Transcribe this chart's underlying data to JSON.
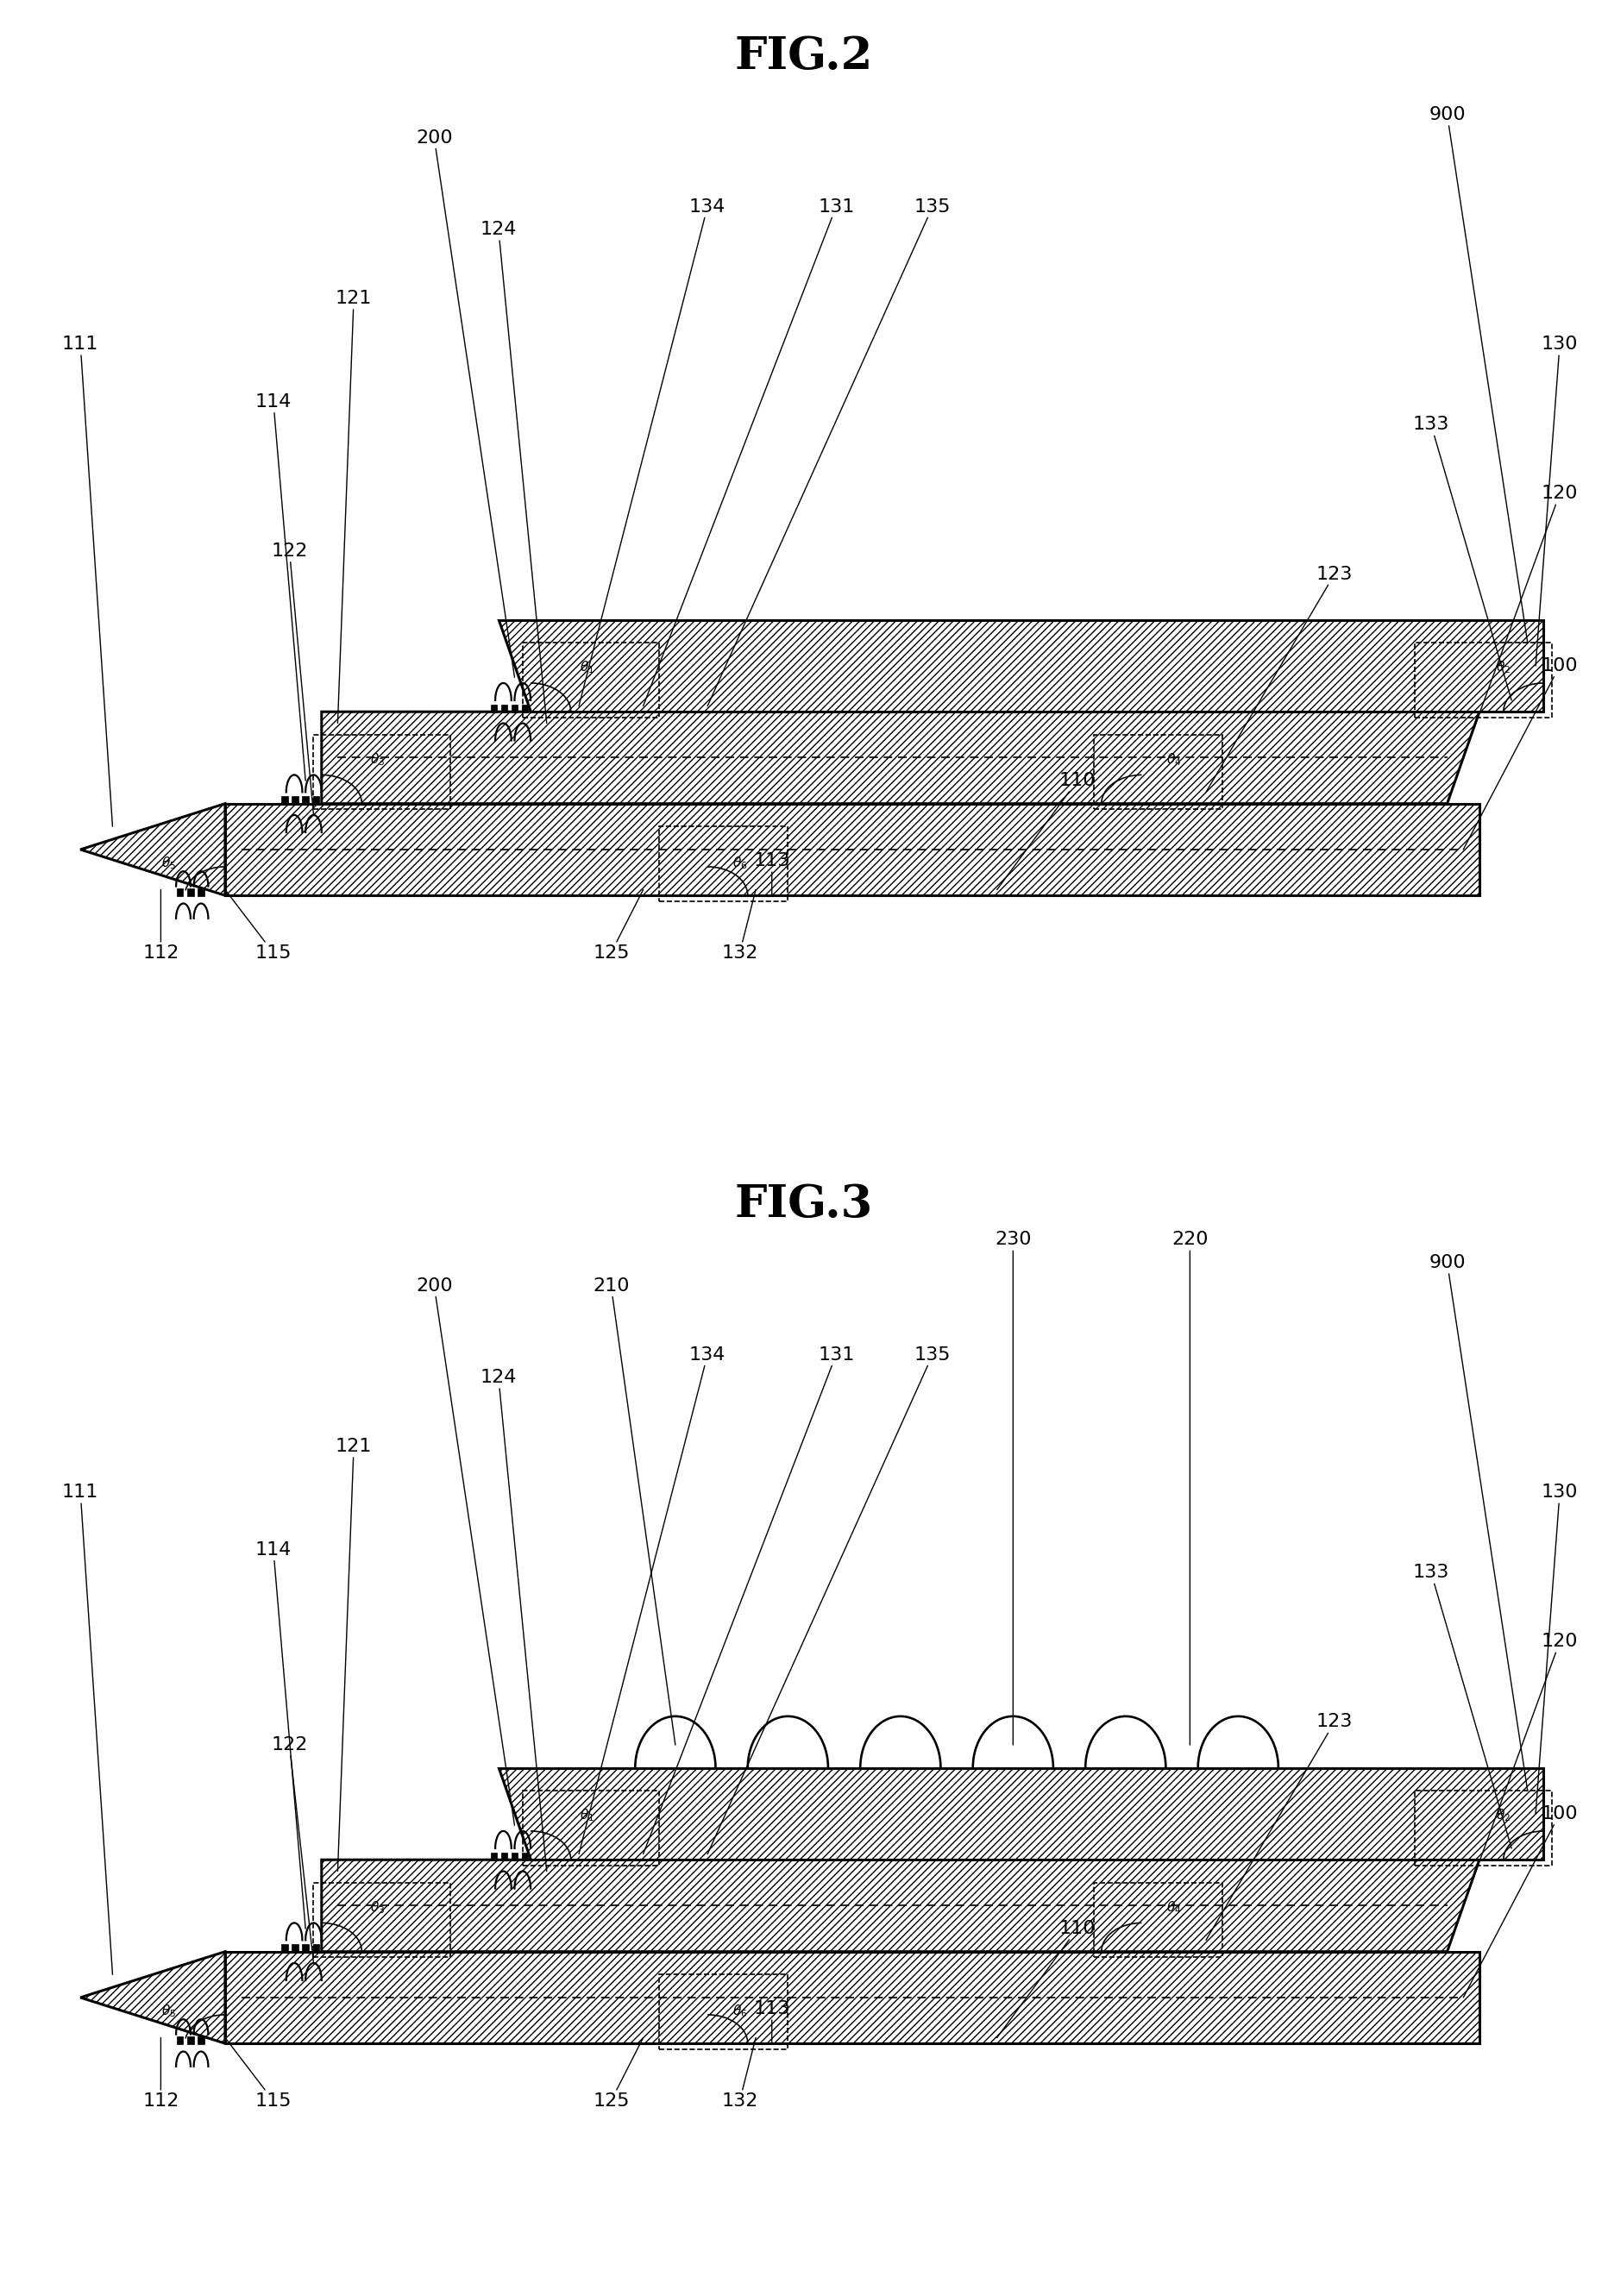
{
  "title_fig2": "FIG.2",
  "title_fig3": "FIG.3",
  "bg_color": "#ffffff",
  "line_color": "#000000",
  "fig_width": 18.64,
  "fig_height": 26.62,
  "label_fontsize": 16,
  "title_fontsize": 38,
  "lw_thick": 2.2,
  "lw_med": 1.6,
  "lw_thin": 1.2
}
